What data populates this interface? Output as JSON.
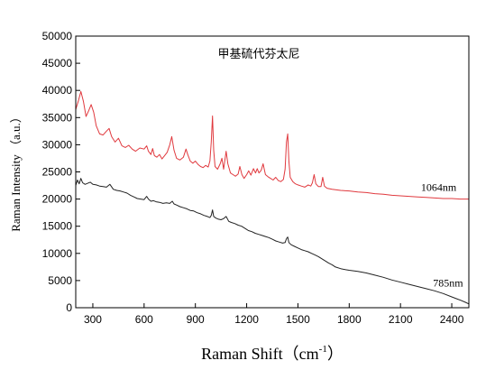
{
  "chart_data": {
    "type": "line",
    "title": "甲基硫代芬太尼",
    "xlabel": "Raman Shift（cm",
    "xlabel_sup": "-1",
    "xlabel_close": "）",
    "ylabel": "Raman Intensity （a.u.）",
    "xlim": [
      200,
      2500
    ],
    "ylim": [
      0,
      50000
    ],
    "xticks": [
      "300",
      "600",
      "900",
      "1200",
      "1500",
      "1800",
      "2100",
      "2400"
    ],
    "xtick_values": [
      300,
      600,
      900,
      1200,
      1500,
      1800,
      2100,
      2400
    ],
    "yticks": [
      "0",
      "5000",
      "10000",
      "15000",
      "20000",
      "25000",
      "30000",
      "35000",
      "40000",
      "45000",
      "50000"
    ],
    "ytick_values": [
      0,
      5000,
      10000,
      15000,
      20000,
      25000,
      30000,
      35000,
      40000,
      45000,
      50000
    ],
    "grid": false,
    "series": [
      {
        "name": "1064nm",
        "color": "#e0393e",
        "points": [
          [
            200,
            36500
          ],
          [
            215,
            38000
          ],
          [
            230,
            39800
          ],
          [
            245,
            38000
          ],
          [
            260,
            35200
          ],
          [
            275,
            36200
          ],
          [
            290,
            37400
          ],
          [
            305,
            36000
          ],
          [
            320,
            33500
          ],
          [
            340,
            32000
          ],
          [
            360,
            31800
          ],
          [
            380,
            32500
          ],
          [
            395,
            33000
          ],
          [
            410,
            31500
          ],
          [
            430,
            30500
          ],
          [
            450,
            31200
          ],
          [
            470,
            29800
          ],
          [
            490,
            29500
          ],
          [
            510,
            29900
          ],
          [
            530,
            29200
          ],
          [
            550,
            28800
          ],
          [
            575,
            29400
          ],
          [
            600,
            29200
          ],
          [
            615,
            29800
          ],
          [
            625,
            28800
          ],
          [
            640,
            28200
          ],
          [
            650,
            29300
          ],
          [
            660,
            28000
          ],
          [
            675,
            27700
          ],
          [
            690,
            28200
          ],
          [
            705,
            27400
          ],
          [
            720,
            28000
          ],
          [
            735,
            28600
          ],
          [
            750,
            30000
          ],
          [
            762,
            31500
          ],
          [
            775,
            29000
          ],
          [
            790,
            27500
          ],
          [
            810,
            27200
          ],
          [
            830,
            27700
          ],
          [
            845,
            29200
          ],
          [
            855,
            28200
          ],
          [
            870,
            27000
          ],
          [
            885,
            26600
          ],
          [
            900,
            27000
          ],
          [
            915,
            26400
          ],
          [
            930,
            26000
          ],
          [
            945,
            25800
          ],
          [
            960,
            26200
          ],
          [
            975,
            25900
          ],
          [
            985,
            27000
          ],
          [
            993,
            30500
          ],
          [
            1000,
            35300
          ],
          [
            1007,
            29000
          ],
          [
            1015,
            26000
          ],
          [
            1030,
            25500
          ],
          [
            1045,
            26500
          ],
          [
            1055,
            27500
          ],
          [
            1065,
            25500
          ],
          [
            1080,
            28800
          ],
          [
            1090,
            26500
          ],
          [
            1105,
            24800
          ],
          [
            1120,
            24500
          ],
          [
            1135,
            24200
          ],
          [
            1150,
            24600
          ],
          [
            1160,
            26000
          ],
          [
            1172,
            24500
          ],
          [
            1185,
            23800
          ],
          [
            1200,
            24500
          ],
          [
            1212,
            25200
          ],
          [
            1225,
            24400
          ],
          [
            1240,
            25600
          ],
          [
            1252,
            24800
          ],
          [
            1262,
            25600
          ],
          [
            1272,
            24800
          ],
          [
            1285,
            25300
          ],
          [
            1296,
            26500
          ],
          [
            1310,
            24500
          ],
          [
            1325,
            24100
          ],
          [
            1340,
            23800
          ],
          [
            1355,
            23500
          ],
          [
            1370,
            24000
          ],
          [
            1385,
            23400
          ],
          [
            1400,
            23200
          ],
          [
            1415,
            23600
          ],
          [
            1425,
            25500
          ],
          [
            1433,
            30500
          ],
          [
            1440,
            32000
          ],
          [
            1447,
            27000
          ],
          [
            1455,
            24000
          ],
          [
            1470,
            23200
          ],
          [
            1485,
            22800
          ],
          [
            1500,
            22600
          ],
          [
            1520,
            22400
          ],
          [
            1540,
            22200
          ],
          [
            1560,
            22600
          ],
          [
            1575,
            22400
          ],
          [
            1585,
            23000
          ],
          [
            1595,
            24500
          ],
          [
            1605,
            22800
          ],
          [
            1620,
            22300
          ],
          [
            1635,
            22300
          ],
          [
            1645,
            24000
          ],
          [
            1655,
            22400
          ],
          [
            1670,
            22000
          ],
          [
            1700,
            21800
          ],
          [
            1750,
            21600
          ],
          [
            1800,
            21500
          ],
          [
            1850,
            21300
          ],
          [
            1900,
            21200
          ],
          [
            1950,
            21000
          ],
          [
            2000,
            20900
          ],
          [
            2050,
            20700
          ],
          [
            2100,
            20600
          ],
          [
            2150,
            20500
          ],
          [
            2200,
            20400
          ],
          [
            2250,
            20300
          ],
          [
            2300,
            20200
          ],
          [
            2350,
            20100
          ],
          [
            2400,
            20100
          ],
          [
            2450,
            20000
          ],
          [
            2500,
            20000
          ]
        ],
        "label": "1064nm",
        "label_x": 2220,
        "label_y": 21500
      },
      {
        "name": "785nm",
        "color": "#222222",
        "points": [
          [
            200,
            22500
          ],
          [
            210,
            23500
          ],
          [
            220,
            22800
          ],
          [
            230,
            23800
          ],
          [
            240,
            23000
          ],
          [
            255,
            22700
          ],
          [
            270,
            22900
          ],
          [
            285,
            23100
          ],
          [
            300,
            22700
          ],
          [
            320,
            22600
          ],
          [
            340,
            22400
          ],
          [
            360,
            22300
          ],
          [
            380,
            22200
          ],
          [
            400,
            22700
          ],
          [
            420,
            21800
          ],
          [
            440,
            21600
          ],
          [
            460,
            21500
          ],
          [
            480,
            21300
          ],
          [
            500,
            21100
          ],
          [
            520,
            20700
          ],
          [
            540,
            20400
          ],
          [
            560,
            20100
          ],
          [
            580,
            20000
          ],
          [
            600,
            19900
          ],
          [
            615,
            20500
          ],
          [
            625,
            20000
          ],
          [
            640,
            19600
          ],
          [
            655,
            19700
          ],
          [
            670,
            19500
          ],
          [
            690,
            19400
          ],
          [
            710,
            19200
          ],
          [
            730,
            19300
          ],
          [
            750,
            19200
          ],
          [
            765,
            19600
          ],
          [
            775,
            19100
          ],
          [
            790,
            18900
          ],
          [
            810,
            18600
          ],
          [
            830,
            18400
          ],
          [
            850,
            18200
          ],
          [
            870,
            17900
          ],
          [
            890,
            17800
          ],
          [
            910,
            17500
          ],
          [
            930,
            17300
          ],
          [
            950,
            17000
          ],
          [
            970,
            16800
          ],
          [
            985,
            16600
          ],
          [
            993,
            17000
          ],
          [
            1000,
            18000
          ],
          [
            1007,
            16800
          ],
          [
            1020,
            16500
          ],
          [
            1035,
            16300
          ],
          [
            1050,
            16200
          ],
          [
            1065,
            16400
          ],
          [
            1080,
            16800
          ],
          [
            1095,
            15900
          ],
          [
            1110,
            15700
          ],
          [
            1130,
            15500
          ],
          [
            1150,
            15200
          ],
          [
            1170,
            15000
          ],
          [
            1190,
            14600
          ],
          [
            1210,
            14200
          ],
          [
            1230,
            14000
          ],
          [
            1250,
            13700
          ],
          [
            1270,
            13500
          ],
          [
            1290,
            13300
          ],
          [
            1310,
            13100
          ],
          [
            1330,
            12900
          ],
          [
            1350,
            12600
          ],
          [
            1370,
            12300
          ],
          [
            1390,
            12100
          ],
          [
            1410,
            11900
          ],
          [
            1425,
            12000
          ],
          [
            1433,
            12700
          ],
          [
            1440,
            13000
          ],
          [
            1447,
            12000
          ],
          [
            1460,
            11600
          ],
          [
            1480,
            11300
          ],
          [
            1500,
            11000
          ],
          [
            1520,
            10700
          ],
          [
            1540,
            10500
          ],
          [
            1560,
            10300
          ],
          [
            1580,
            10000
          ],
          [
            1600,
            9700
          ],
          [
            1620,
            9400
          ],
          [
            1640,
            9000
          ],
          [
            1660,
            8600
          ],
          [
            1680,
            8200
          ],
          [
            1700,
            7900
          ],
          [
            1720,
            7500
          ],
          [
            1750,
            7200
          ],
          [
            1780,
            7000
          ],
          [
            1800,
            6900
          ],
          [
            1850,
            6700
          ],
          [
            1900,
            6400
          ],
          [
            1950,
            6000
          ],
          [
            2000,
            5600
          ],
          [
            2050,
            5100
          ],
          [
            2100,
            4700
          ],
          [
            2150,
            4300
          ],
          [
            2200,
            3900
          ],
          [
            2250,
            3500
          ],
          [
            2300,
            3100
          ],
          [
            2350,
            2600
          ],
          [
            2400,
            2000
          ],
          [
            2450,
            1400
          ],
          [
            2480,
            1000
          ],
          [
            2500,
            700
          ]
        ],
        "label": "785nm",
        "label_x": 2290,
        "label_y": 3900
      }
    ]
  }
}
